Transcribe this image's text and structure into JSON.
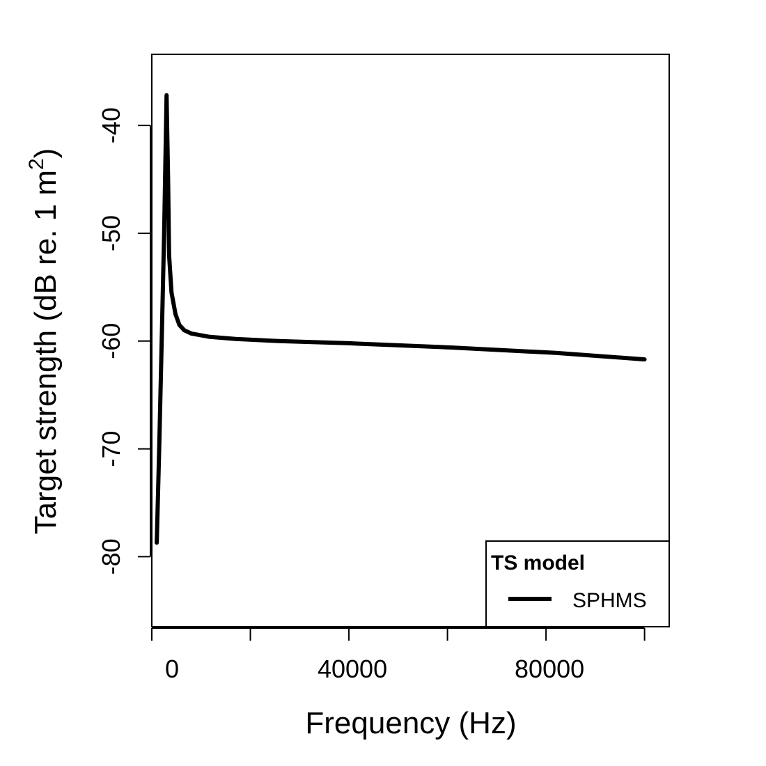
{
  "chart_data": {
    "type": "line",
    "title": "",
    "xlabel": "Frequency (Hz)",
    "ylabel": "Target strength (dB re. 1 m",
    "ylabel_superscript": "2",
    "ylabel_close": ")",
    "xlim": [
      0,
      105000
    ],
    "ylim": [
      -86.5,
      -33.4
    ],
    "x_ticks": [
      0,
      20000,
      40000,
      60000,
      80000,
      100000
    ],
    "x_tick_labels": [
      {
        "value": 0,
        "label": "0"
      },
      {
        "value": 40000,
        "label": "40000"
      },
      {
        "value": 80000,
        "label": "80000"
      }
    ],
    "y_ticks": [
      -40,
      -50,
      -60,
      -70,
      -80
    ],
    "y_tick_labels": [
      "-40",
      "-50",
      "-60",
      "-70",
      "-80"
    ],
    "grid": false,
    "legend": {
      "title": "TS model",
      "position": "bottom-right"
    },
    "series": [
      {
        "name": "SPHMS",
        "color": "#000000",
        "x": [
          1000,
          1500,
          2000,
          2500,
          3000,
          3300,
          3500,
          4000,
          4800,
          5600,
          6600,
          8000,
          11600,
          17000,
          25700,
          40000,
          61000,
          82000,
          100000
        ],
        "y": [
          -78.7,
          -70,
          -60,
          -50,
          -37.2,
          -45,
          -52,
          -55.5,
          -57.5,
          -58.5,
          -59,
          -59.3,
          -59.6,
          -59.8,
          -60,
          -60.2,
          -60.6,
          -61.1,
          -61.7
        ]
      }
    ]
  }
}
